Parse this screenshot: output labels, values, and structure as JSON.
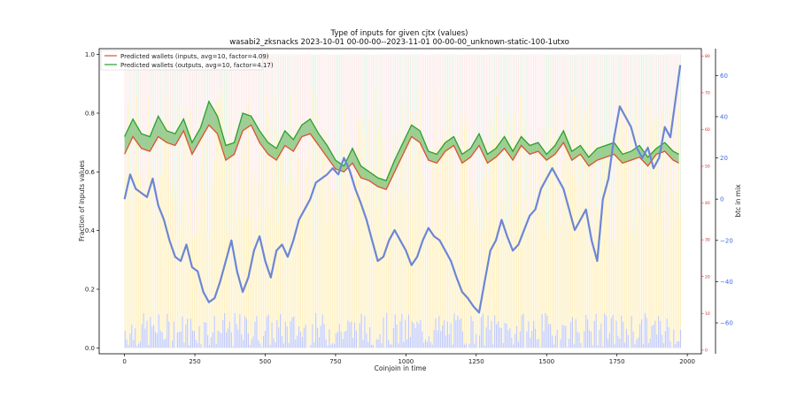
{
  "chart_data": {
    "type": "line",
    "title_line1": "Type of inputs for given cjtx (values)",
    "title_line2": "wasabi2_zksnacks 2023-10-01 00-00-00--2023-11-01 00-00-00_unknown-static-100-1utxo",
    "xlabel": "Coinjoin in time",
    "ylabel": "Fraction of inputs values",
    "y2label": "btc in mix",
    "xlim": [
      -90,
      2050
    ],
    "ylim": [
      -0.02,
      1.02
    ],
    "xticks": [
      0,
      250,
      500,
      750,
      1000,
      1250,
      1500,
      1750,
      2000
    ],
    "yticks": [
      0.0,
      0.2,
      0.4,
      0.6,
      0.8,
      1.0
    ],
    "y_red_axis": {
      "color": "#d62728",
      "ticks": [
        0,
        10,
        20,
        30,
        40,
        50,
        60,
        70,
        80
      ],
      "lim": [
        -1,
        82
      ]
    },
    "y_blue_axis": {
      "color": "#4169e1",
      "ticks": [
        -60,
        -40,
        -20,
        0,
        20,
        40,
        60
      ],
      "lim": [
        -75,
        73
      ]
    },
    "legend_position": "upper-left",
    "grid": false,
    "colors": {
      "inputs": "#d9532f",
      "outputs": "#2ca02c",
      "btc_in_mix": "#6b86d6",
      "bar_yellow": "#fde9a6",
      "bar_pink": "#f9c7c7",
      "bar_blue": "#8d9cf0",
      "bar_green": "#b7e0b3"
    },
    "series": [
      {
        "name": "Predicted wallets (inputs, avg=10, factor=4.09)",
        "axis": "left",
        "x": [
          0,
          30,
          60,
          90,
          120,
          150,
          180,
          210,
          240,
          270,
          300,
          330,
          360,
          390,
          420,
          450,
          480,
          510,
          540,
          570,
          600,
          630,
          660,
          690,
          720,
          750,
          780,
          810,
          840,
          870,
          900,
          930,
          960,
          990,
          1020,
          1050,
          1080,
          1110,
          1140,
          1170,
          1200,
          1230,
          1260,
          1290,
          1320,
          1350,
          1380,
          1410,
          1440,
          1470,
          1500,
          1530,
          1560,
          1590,
          1620,
          1650,
          1680,
          1710,
          1740,
          1770,
          1800,
          1830,
          1860,
          1890,
          1920,
          1950,
          1970
        ],
        "values": [
          0.66,
          0.72,
          0.68,
          0.67,
          0.72,
          0.7,
          0.69,
          0.74,
          0.66,
          0.71,
          0.76,
          0.73,
          0.64,
          0.66,
          0.74,
          0.76,
          0.7,
          0.66,
          0.64,
          0.69,
          0.67,
          0.72,
          0.73,
          0.69,
          0.65,
          0.61,
          0.6,
          0.63,
          0.58,
          0.57,
          0.55,
          0.54,
          0.6,
          0.66,
          0.72,
          0.7,
          0.64,
          0.63,
          0.67,
          0.69,
          0.63,
          0.65,
          0.69,
          0.63,
          0.65,
          0.68,
          0.64,
          0.69,
          0.66,
          0.67,
          0.64,
          0.66,
          0.7,
          0.64,
          0.66,
          0.62,
          0.64,
          0.65,
          0.66,
          0.63,
          0.64,
          0.65,
          0.62,
          0.66,
          0.67,
          0.64,
          0.63
        ]
      },
      {
        "name": "Predicted wallets (outputs, avg=10, factor=4.17)",
        "axis": "left",
        "x": [
          0,
          30,
          60,
          90,
          120,
          150,
          180,
          210,
          240,
          270,
          300,
          330,
          360,
          390,
          420,
          450,
          480,
          510,
          540,
          570,
          600,
          630,
          660,
          690,
          720,
          750,
          780,
          810,
          840,
          870,
          900,
          930,
          960,
          990,
          1020,
          1050,
          1080,
          1110,
          1140,
          1170,
          1200,
          1230,
          1260,
          1290,
          1320,
          1350,
          1380,
          1410,
          1440,
          1470,
          1500,
          1530,
          1560,
          1590,
          1620,
          1650,
          1680,
          1710,
          1740,
          1770,
          1800,
          1830,
          1860,
          1890,
          1920,
          1950,
          1970
        ],
        "values": [
          0.72,
          0.78,
          0.73,
          0.72,
          0.79,
          0.74,
          0.73,
          0.78,
          0.7,
          0.75,
          0.84,
          0.79,
          0.69,
          0.7,
          0.8,
          0.79,
          0.74,
          0.7,
          0.68,
          0.74,
          0.71,
          0.76,
          0.78,
          0.73,
          0.69,
          0.64,
          0.62,
          0.68,
          0.62,
          0.6,
          0.58,
          0.57,
          0.64,
          0.7,
          0.76,
          0.74,
          0.67,
          0.66,
          0.7,
          0.72,
          0.66,
          0.68,
          0.73,
          0.66,
          0.68,
          0.72,
          0.67,
          0.72,
          0.69,
          0.7,
          0.66,
          0.69,
          0.74,
          0.67,
          0.69,
          0.65,
          0.68,
          0.69,
          0.7,
          0.66,
          0.67,
          0.69,
          0.65,
          0.68,
          0.7,
          0.67,
          0.66
        ]
      },
      {
        "name": "btc in mix",
        "axis": "right-blue",
        "x": [
          0,
          20,
          40,
          60,
          80,
          100,
          120,
          140,
          160,
          180,
          200,
          220,
          240,
          260,
          280,
          300,
          320,
          340,
          360,
          380,
          400,
          420,
          440,
          460,
          480,
          500,
          520,
          540,
          560,
          580,
          600,
          620,
          640,
          660,
          680,
          700,
          720,
          740,
          760,
          780,
          800,
          820,
          840,
          860,
          880,
          900,
          920,
          940,
          960,
          980,
          1000,
          1020,
          1040,
          1060,
          1080,
          1100,
          1120,
          1140,
          1160,
          1180,
          1200,
          1220,
          1240,
          1260,
          1280,
          1300,
          1320,
          1340,
          1360,
          1380,
          1400,
          1420,
          1440,
          1460,
          1480,
          1500,
          1520,
          1540,
          1560,
          1580,
          1600,
          1620,
          1640,
          1660,
          1680,
          1700,
          1720,
          1740,
          1760,
          1780,
          1800,
          1820,
          1840,
          1860,
          1880,
          1900,
          1920,
          1940,
          1960,
          1975
        ],
        "values": [
          0,
          12,
          5,
          3,
          1,
          10,
          -3,
          -10,
          -20,
          -28,
          -30,
          -22,
          -33,
          -35,
          -45,
          -50,
          -48,
          -40,
          -30,
          -20,
          -35,
          -45,
          -38,
          -25,
          -18,
          -30,
          -38,
          -25,
          -22,
          -28,
          -20,
          -10,
          -5,
          0,
          8,
          10,
          12,
          15,
          12,
          20,
          14,
          5,
          -2,
          -10,
          -20,
          -30,
          -28,
          -20,
          -15,
          -20,
          -25,
          -32,
          -28,
          -20,
          -14,
          -18,
          -20,
          -25,
          -30,
          -38,
          -45,
          -48,
          -52,
          -55,
          -40,
          -25,
          -20,
          -10,
          -18,
          -25,
          -22,
          -15,
          -8,
          -5,
          5,
          10,
          15,
          10,
          5,
          -5,
          -15,
          -10,
          -5,
          -20,
          -30,
          0,
          10,
          30,
          45,
          40,
          35,
          25,
          20,
          25,
          15,
          20,
          35,
          30,
          50,
          65
        ]
      }
    ]
  }
}
